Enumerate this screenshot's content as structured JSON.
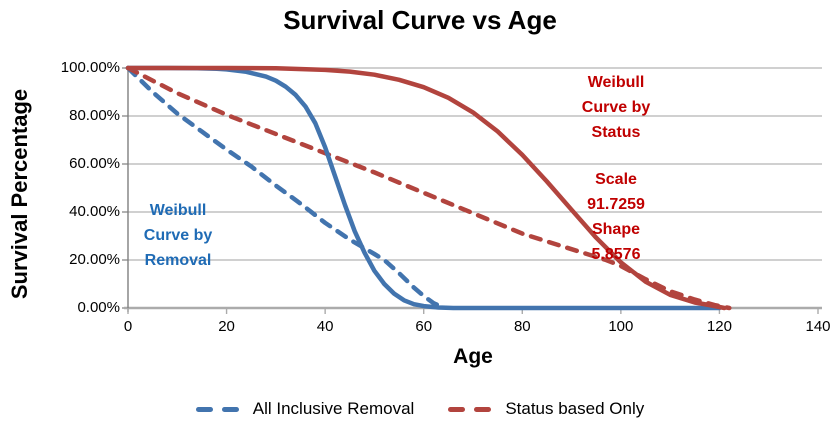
{
  "title": "Survival Curve vs Age",
  "y_axis_title": "Survival Percentage",
  "x_axis_title": "Age",
  "colors": {
    "blue_curve": "#4274AE",
    "blue_text": "#1F6BB5",
    "red_curve": "#B2443E",
    "red_text": "#C00000",
    "gridline": "#A0A0A0",
    "x_axis_line": "#ABABAB",
    "y_axis_line": "#7F7F7F",
    "tick_text": "#000000"
  },
  "annotations": {
    "removal": {
      "lines": [
        "Weibull",
        "Curve by",
        "Removal"
      ]
    },
    "status": {
      "lines": [
        "Weibull",
        "Curve by",
        "Status"
      ]
    },
    "params": {
      "lines": [
        "Scale",
        "91.7259",
        "Shape",
        "5.8576"
      ]
    }
  },
  "legend": [
    {
      "label": "All Inclusive Removal",
      "color_key": "blue_curve"
    },
    {
      "label": "Status based Only",
      "color_key": "red_curve"
    }
  ],
  "chart_data": {
    "type": "line",
    "title": "Survival Curve vs Age",
    "xlabel": "Age",
    "ylabel": "Survival Percentage",
    "xlim": [
      0,
      140
    ],
    "ylim": [
      0,
      100
    ],
    "x_ticks": [
      0,
      20,
      40,
      60,
      80,
      100,
      120,
      140
    ],
    "y_tick_values": [
      0,
      20,
      40,
      60,
      80,
      100
    ],
    "y_tick_labels": [
      "0.00%",
      "20.00%",
      "40.00%",
      "60.00%",
      "80.00%",
      "100.00%"
    ],
    "grid": "horizontal",
    "legend_position": "bottom",
    "weibull_params": {
      "status_curve": {
        "scale": 91.7259,
        "shape": 5.8576
      }
    },
    "series": [
      {
        "name": "All Inclusive Removal",
        "style": "dashed",
        "color_key": "blue_curve",
        "points": [
          [
            0,
            100
          ],
          [
            5,
            90
          ],
          [
            10,
            81
          ],
          [
            15,
            73.5
          ],
          [
            20,
            66
          ],
          [
            25,
            59
          ],
          [
            30,
            51
          ],
          [
            35,
            43.5
          ],
          [
            40,
            35.5
          ],
          [
            45,
            28.5
          ],
          [
            50,
            22.5
          ],
          [
            52,
            20
          ],
          [
            55,
            14.5
          ],
          [
            58,
            8.5
          ],
          [
            60,
            5
          ],
          [
            62,
            2
          ],
          [
            64,
            0.3
          ]
        ]
      },
      {
        "name": "Status based Only",
        "style": "dashed",
        "color_key": "red_curve",
        "points": [
          [
            0,
            100
          ],
          [
            10,
            89.5
          ],
          [
            20,
            80.5
          ],
          [
            30,
            72.5
          ],
          [
            40,
            64.5
          ],
          [
            50,
            56.5
          ],
          [
            60,
            48
          ],
          [
            70,
            39.5
          ],
          [
            80,
            31
          ],
          [
            90,
            24.5
          ],
          [
            97,
            20
          ],
          [
            100,
            17.5
          ],
          [
            105,
            12
          ],
          [
            110,
            7
          ],
          [
            115,
            3.5
          ],
          [
            119,
            1.2
          ],
          [
            122,
            0
          ]
        ]
      },
      {
        "name": "Weibull Curve by Removal",
        "style": "solid",
        "color_key": "blue_curve",
        "points": [
          [
            0,
            100
          ],
          [
            8,
            100
          ],
          [
            14,
            99.9
          ],
          [
            18,
            99.7
          ],
          [
            20,
            99.4
          ],
          [
            24,
            98.4
          ],
          [
            28,
            96.4
          ],
          [
            30,
            94.7
          ],
          [
            32,
            92.2
          ],
          [
            34,
            88.8
          ],
          [
            36,
            84
          ],
          [
            38,
            77
          ],
          [
            40,
            67
          ],
          [
            42,
            55
          ],
          [
            44,
            43
          ],
          [
            46,
            32
          ],
          [
            48,
            23
          ],
          [
            50,
            15.5
          ],
          [
            52,
            10
          ],
          [
            54,
            6
          ],
          [
            56,
            3.2
          ],
          [
            58,
            1.6
          ],
          [
            60,
            0.8
          ],
          [
            63,
            0.2
          ],
          [
            66,
            0
          ],
          [
            120,
            0
          ]
        ]
      },
      {
        "name": "Weibull Curve by Status",
        "style": "solid",
        "color_key": "red_curve",
        "points": [
          [
            0,
            100
          ],
          [
            20,
            100
          ],
          [
            30,
            99.9
          ],
          [
            40,
            99.2
          ],
          [
            45,
            98.5
          ],
          [
            50,
            97.2
          ],
          [
            55,
            95.1
          ],
          [
            60,
            92
          ],
          [
            65,
            87.6
          ],
          [
            70,
            81.5
          ],
          [
            75,
            73.6
          ],
          [
            80,
            63.8
          ],
          [
            85,
            52.7
          ],
          [
            90,
            40.9
          ],
          [
            95,
            29.3
          ],
          [
            100,
            19
          ],
          [
            105,
            11
          ],
          [
            110,
            5.5
          ],
          [
            115,
            2.3
          ],
          [
            118,
            1.2
          ],
          [
            120,
            0.4
          ],
          [
            121,
            0
          ]
        ]
      }
    ]
  }
}
